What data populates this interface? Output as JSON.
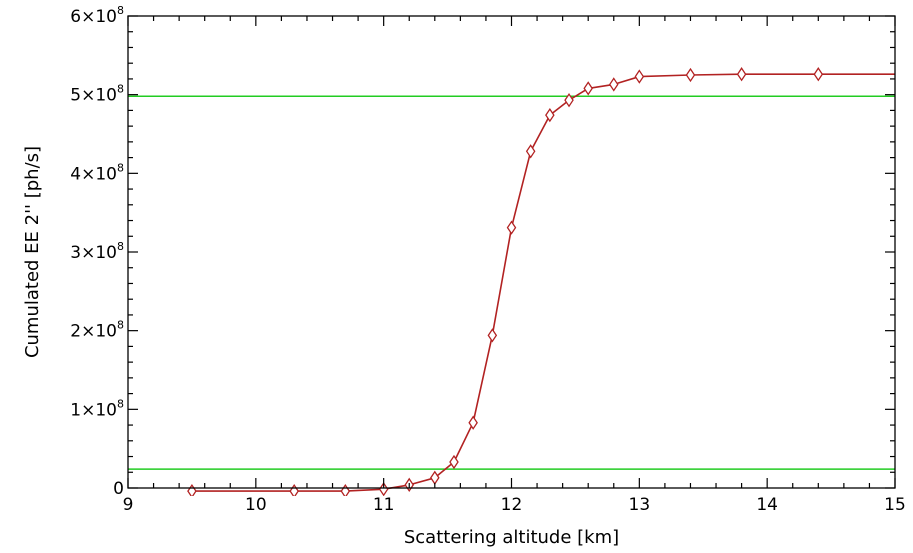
{
  "chart_data": {
    "type": "line",
    "title": "",
    "xlabel": "Scattering altitude [km]",
    "ylabel": "Cumulated EE 2'' [ph/s]",
    "xlim": [
      9,
      15
    ],
    "ylim": [
      0,
      600000000
    ],
    "x_ticks": [
      9,
      10,
      11,
      12,
      13,
      14,
      15
    ],
    "x_tick_labels": [
      "9",
      "10",
      "11",
      "12",
      "13",
      "14",
      "15"
    ],
    "y_ticks": [
      0,
      100000000,
      200000000,
      300000000,
      400000000,
      500000000,
      600000000
    ],
    "y_tick_labels": [
      {
        "mantissa": "0",
        "exponent": ""
      },
      {
        "mantissa": "1×10",
        "exponent": "8"
      },
      {
        "mantissa": "2×10",
        "exponent": "8"
      },
      {
        "mantissa": "3×10",
        "exponent": "8"
      },
      {
        "mantissa": "4×10",
        "exponent": "8"
      },
      {
        "mantissa": "5×10",
        "exponent": "8"
      },
      {
        "mantissa": "6×10",
        "exponent": "8"
      }
    ],
    "grid": false,
    "series": [
      {
        "color": "#b22222",
        "marker": "diamond",
        "x": [
          9.5,
          10.3,
          10.7,
          11.0,
          11.2,
          11.4,
          11.55,
          11.7,
          11.85,
          12.0,
          12.15,
          12.3,
          12.45,
          12.6,
          12.8,
          13.0,
          13.4,
          13.8,
          14.4,
          15.0
        ],
        "y": [
          -4000000,
          -4000000,
          -4000000,
          -1500000,
          4000000,
          13000000,
          33000000,
          83000000,
          194000000,
          331000000,
          428000000,
          474000000,
          493000000,
          508000000,
          513000000,
          523000000,
          525000000,
          526000000,
          526000000,
          526000000
        ],
        "markers_count": 19
      }
    ],
    "reference_lines": [
      {
        "color": "#22cc22",
        "y": 24000000
      },
      {
        "color": "#22cc22",
        "y": 498000000
      }
    ]
  }
}
